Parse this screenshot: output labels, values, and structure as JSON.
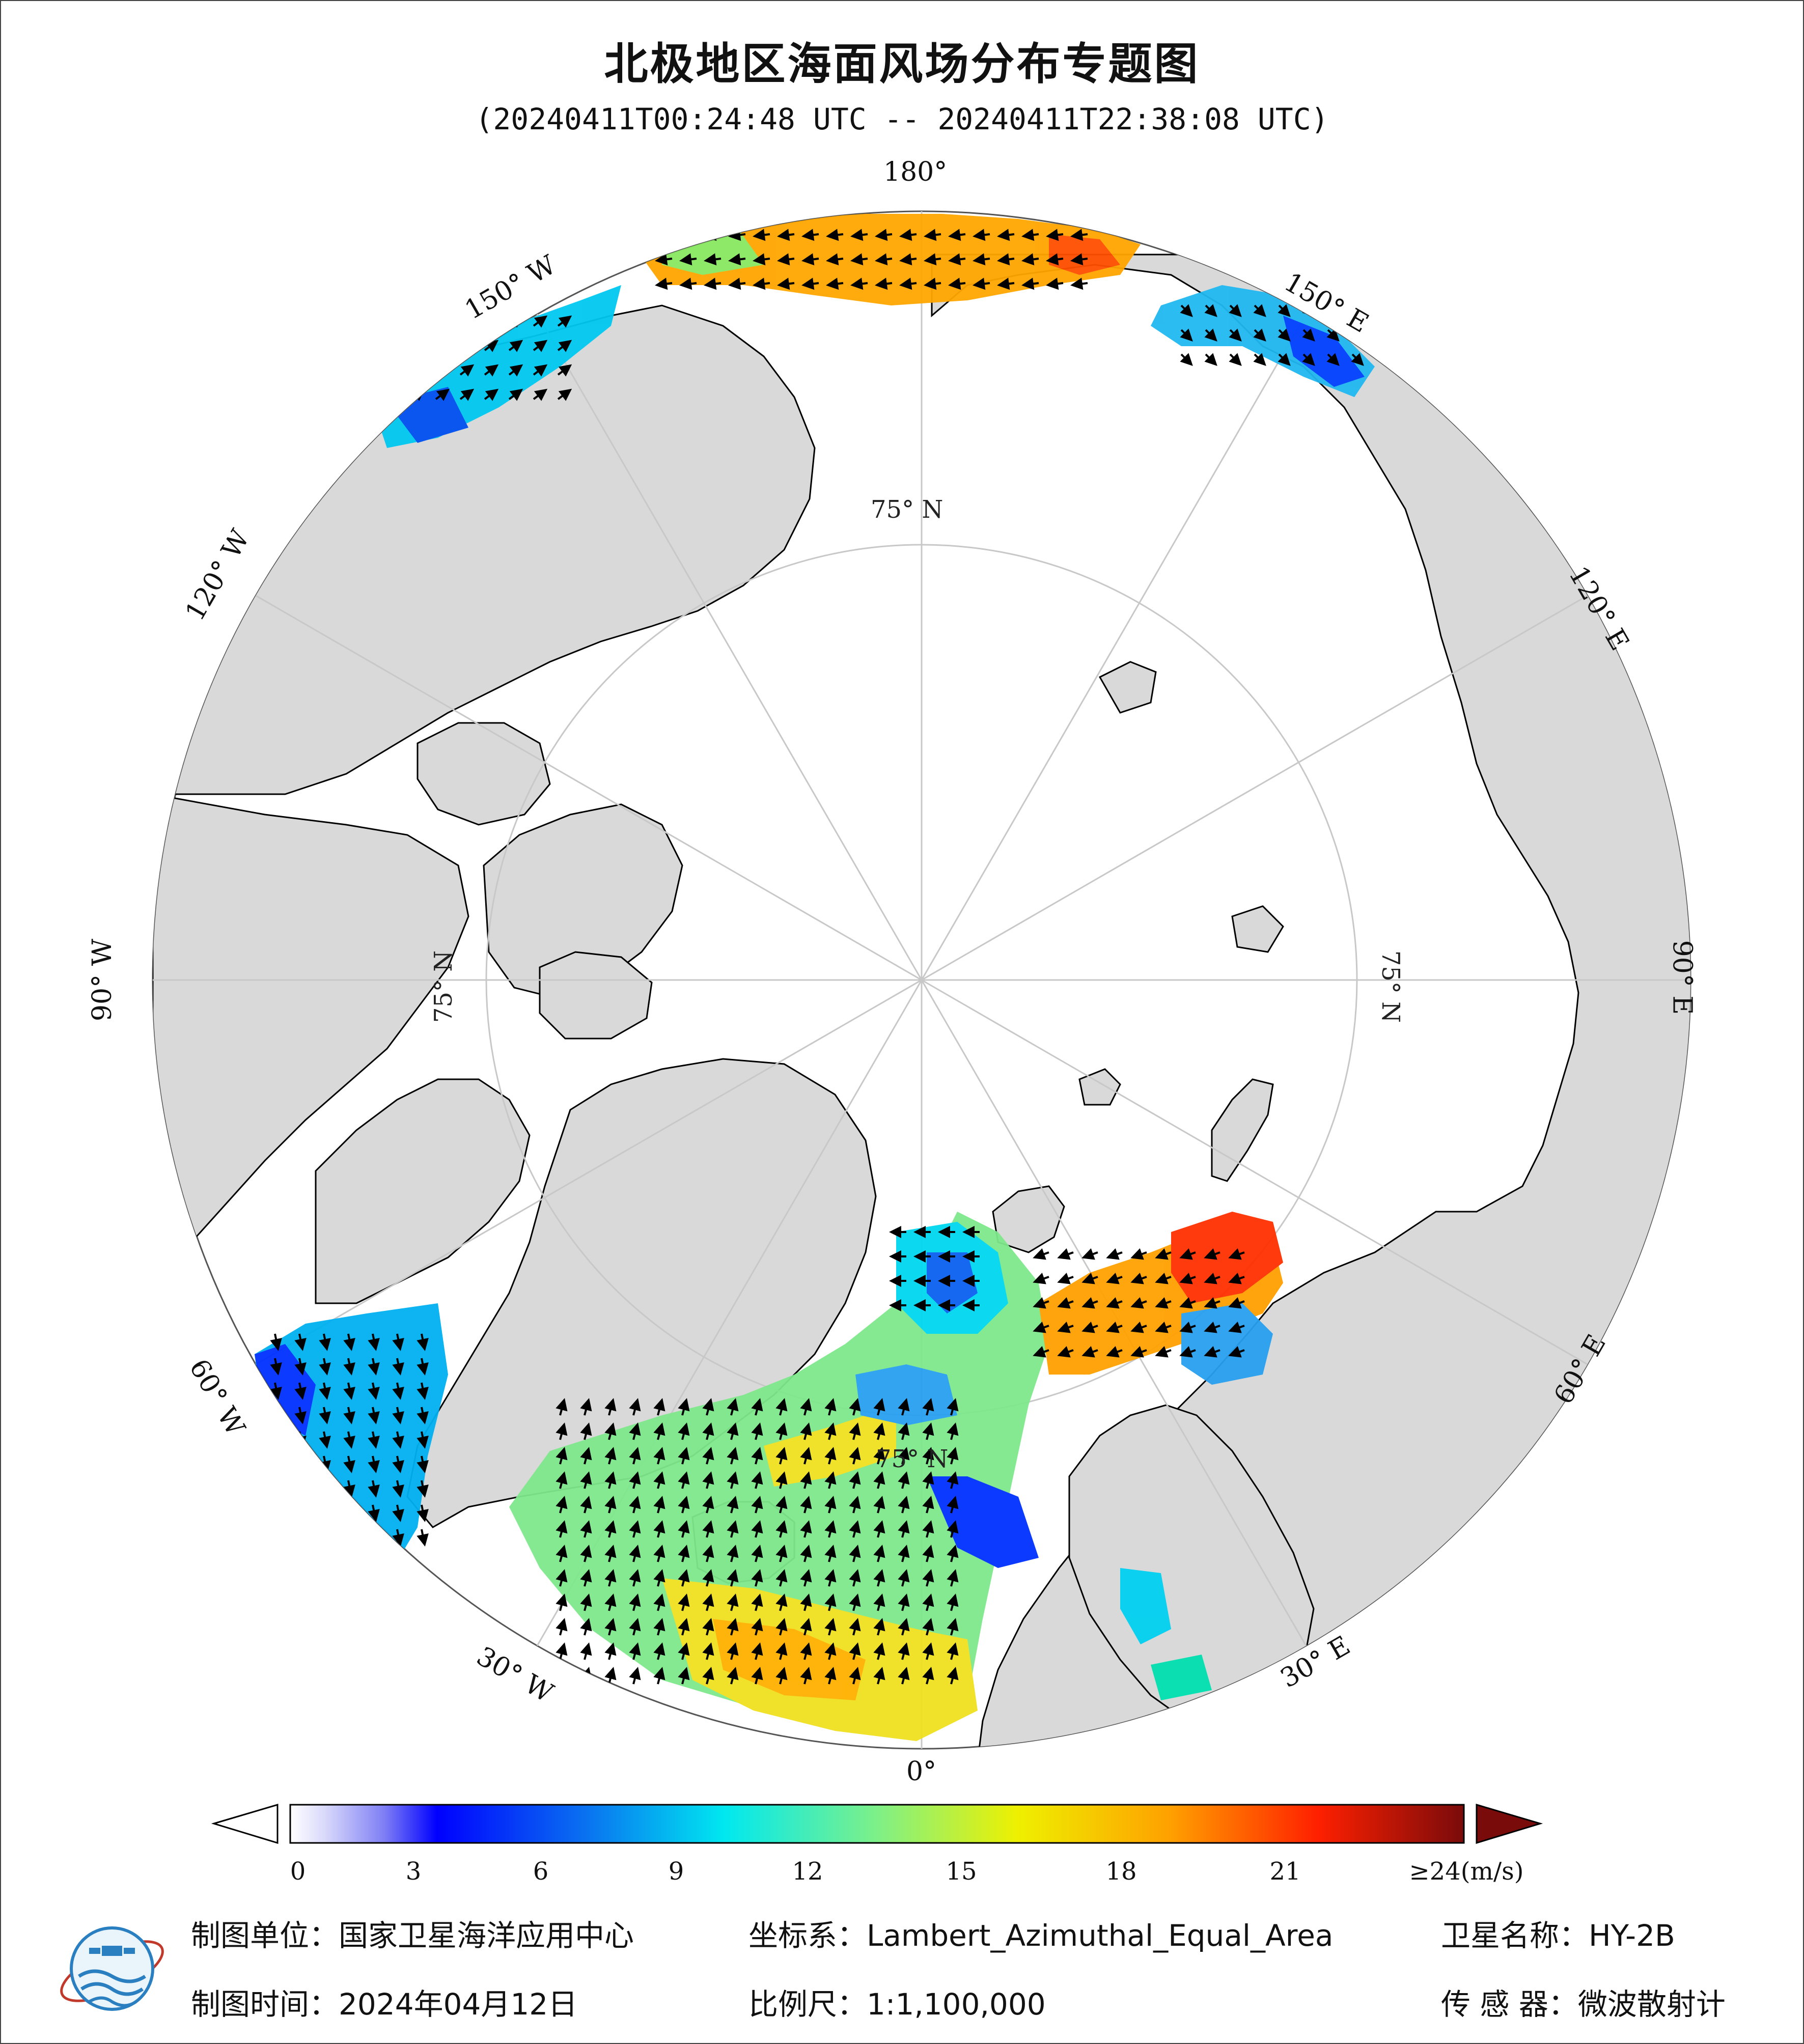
{
  "header": {
    "title": "北极地区海面风场分布专题图",
    "time_range": "(20240411T00:24:48 UTC -- 20240411T22:38:08 UTC)"
  },
  "map": {
    "projection_center": "North Pole",
    "longitude_labels": {
      "lon_180": "180°",
      "lon_150w": "150° W",
      "lon_120w": "120° W",
      "lon_90w": "90° W",
      "lon_60w": "60° W",
      "lon_30w": "30° W",
      "lon_0": "0°",
      "lon_30e": "30° E",
      "lon_60e": "60° E",
      "lon_90e": "90° E",
      "lon_120e": "120° E",
      "lon_150e": "150° E"
    },
    "latitude_labels": {
      "top": "75° N",
      "left": "75° N",
      "right": "75° N",
      "bottom": "75° N"
    },
    "colors": {
      "land": "#d9d9d9",
      "ocean_background": "#ffffff",
      "graticule": "#c8c8c8",
      "coastline": "#000000"
    }
  },
  "colorbar": {
    "unit_label": "≥24(m/s)",
    "ticks": [
      "0",
      "3",
      "6",
      "9",
      "12",
      "15",
      "18",
      "21"
    ],
    "tick_values": [
      0,
      3,
      6,
      9,
      12,
      15,
      18,
      21
    ],
    "range": [
      0,
      24
    ],
    "under_color": "#ffffff",
    "over_color": "#7a0b0b",
    "stops": [
      "#ffffff",
      "#9a9af5",
      "#0000ff",
      "#0a7ef0",
      "#00e5f0",
      "#8af080",
      "#f0f000",
      "#ffa000",
      "#ff2000",
      "#7a0b0b"
    ]
  },
  "footer": {
    "unit": "制图单位：国家卫星海洋应用中心",
    "crs": "坐标系：Lambert_Azimuthal_Equal_Area",
    "satellite": "卫星名称：HY-2B",
    "date": "制图时间：2024年04月12日",
    "scale": "比例尺：1:1,100,000",
    "sensor": "传 感 器：微波散射计"
  }
}
